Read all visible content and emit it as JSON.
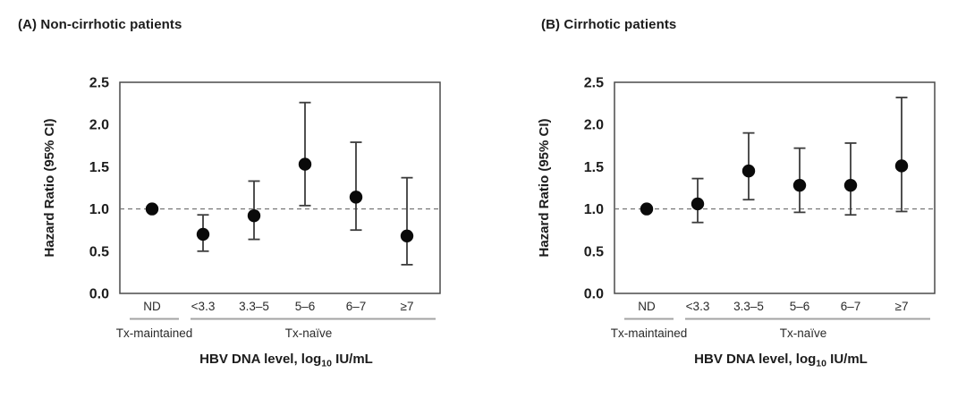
{
  "figure": {
    "background": "#ffffff"
  },
  "colors": {
    "text": "#1c1c1c",
    "axis_frame": "#4a4a4a",
    "marker": "#0a0a0a",
    "error_bar": "#3c3c3c",
    "reference_line": "#6e6e6e",
    "group_underline": "#a3a3a3",
    "tick_label": "#2a2a2a"
  },
  "chart_data": [
    {
      "type": "scatter",
      "panel": "A",
      "title": "(A) Non-cirrhotic patients",
      "ylabel": "Hazard Ratio (95% CI)",
      "ylim": [
        0.0,
        2.5
      ],
      "yticks": [
        "0.0",
        "0.5",
        "1.0",
        "1.5",
        "2.0",
        "2.5"
      ],
      "reference_line": 1.0,
      "grid": false,
      "categories": [
        "ND",
        "<3.3",
        "3.3–5",
        "5–6",
        "6–7",
        "≥7"
      ],
      "series": [
        {
          "name": "Hazard Ratio (95% CI)",
          "points": [
            {
              "category": "ND",
              "hr": 1.0,
              "ci_low": null,
              "ci_high": null
            },
            {
              "category": "<3.3",
              "hr": 0.7,
              "ci_low": 0.5,
              "ci_high": 0.93
            },
            {
              "category": "3.3–5",
              "hr": 0.92,
              "ci_low": 0.64,
              "ci_high": 1.33
            },
            {
              "category": "5–6",
              "hr": 1.53,
              "ci_low": 1.04,
              "ci_high": 2.26
            },
            {
              "category": "6–7",
              "hr": 1.14,
              "ci_low": 0.75,
              "ci_high": 1.79
            },
            {
              "category": "≥7",
              "hr": 0.68,
              "ci_low": 0.34,
              "ci_high": 1.37
            }
          ]
        }
      ],
      "group_labels": [
        {
          "label": "Tx-maintained",
          "categories": [
            "ND"
          ]
        },
        {
          "label": "Tx-naïve",
          "categories": [
            "<3.3",
            "3.3–5",
            "5–6",
            "6–7",
            "≥7"
          ]
        }
      ],
      "xlabel_prefix": "HBV DNA level, log",
      "xlabel_subscript": "10",
      "xlabel_suffix": " IU/mL"
    },
    {
      "type": "scatter",
      "panel": "B",
      "title": "(B) Cirrhotic patients",
      "ylabel": "Hazard Ratio (95% CI)",
      "ylim": [
        0.0,
        2.5
      ],
      "yticks": [
        "0.0",
        "0.5",
        "1.0",
        "1.5",
        "2.0",
        "2.5"
      ],
      "reference_line": 1.0,
      "grid": false,
      "categories": [
        "ND",
        "<3.3",
        "3.3–5",
        "5–6",
        "6–7",
        "≥7"
      ],
      "series": [
        {
          "name": "Hazard Ratio (95% CI)",
          "points": [
            {
              "category": "ND",
              "hr": 1.0,
              "ci_low": null,
              "ci_high": null
            },
            {
              "category": "<3.3",
              "hr": 1.06,
              "ci_low": 0.84,
              "ci_high": 1.36
            },
            {
              "category": "3.3–5",
              "hr": 1.45,
              "ci_low": 1.11,
              "ci_high": 1.9
            },
            {
              "category": "5–6",
              "hr": 1.28,
              "ci_low": 0.96,
              "ci_high": 1.72
            },
            {
              "category": "6–7",
              "hr": 1.28,
              "ci_low": 0.93,
              "ci_high": 1.78
            },
            {
              "category": "≥7",
              "hr": 1.51,
              "ci_low": 0.97,
              "ci_high": 2.32
            }
          ]
        }
      ],
      "group_labels": [
        {
          "label": "Tx-maintained",
          "categories": [
            "ND"
          ]
        },
        {
          "label": "Tx-naïve",
          "categories": [
            "<3.3",
            "3.3–5",
            "5–6",
            "6–7",
            "≥7"
          ]
        }
      ],
      "xlabel_prefix": "HBV DNA level, log",
      "xlabel_subscript": "10",
      "xlabel_suffix": " IU/mL"
    }
  ]
}
